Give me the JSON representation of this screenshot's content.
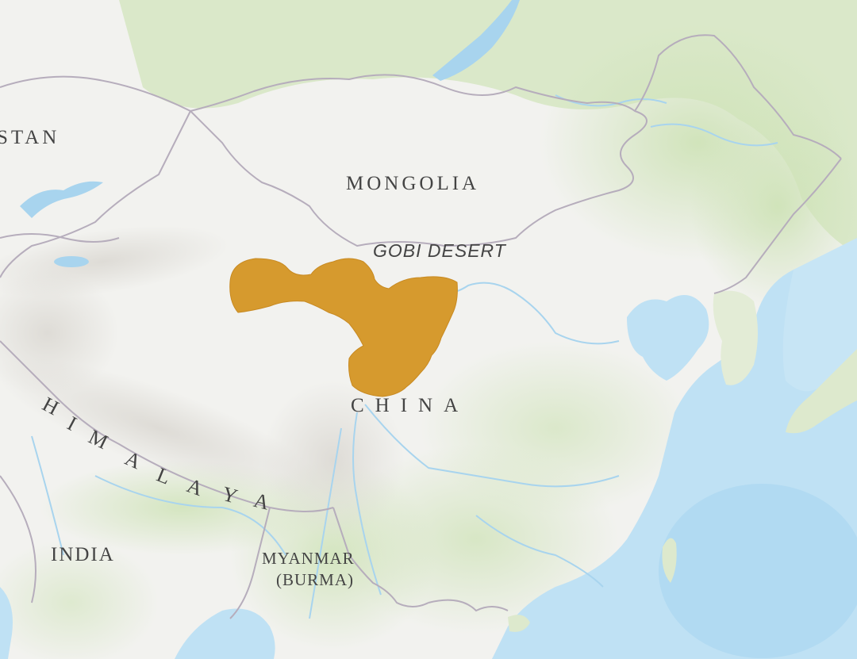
{
  "map": {
    "labels": {
      "stan": "STAN",
      "mongolia": "MONGOLIA",
      "gobi_desert": "GOBI DESERT",
      "china": "CHINA",
      "himalaya": [
        "H",
        "I",
        "M",
        "A",
        "L",
        "A",
        "Y",
        "A"
      ],
      "india": "INDIA",
      "myanmar": "MYANMAR",
      "burma": "(BURMA)"
    },
    "colors": {
      "land": "#f2f2ef",
      "vegetation": "#d4e5bf",
      "water": "#bfe1f4",
      "deep_water": "#a9d6f0",
      "border": "#b6adbc",
      "river": "#a8d4ee",
      "highlight_range": "#d69a2e"
    }
  }
}
